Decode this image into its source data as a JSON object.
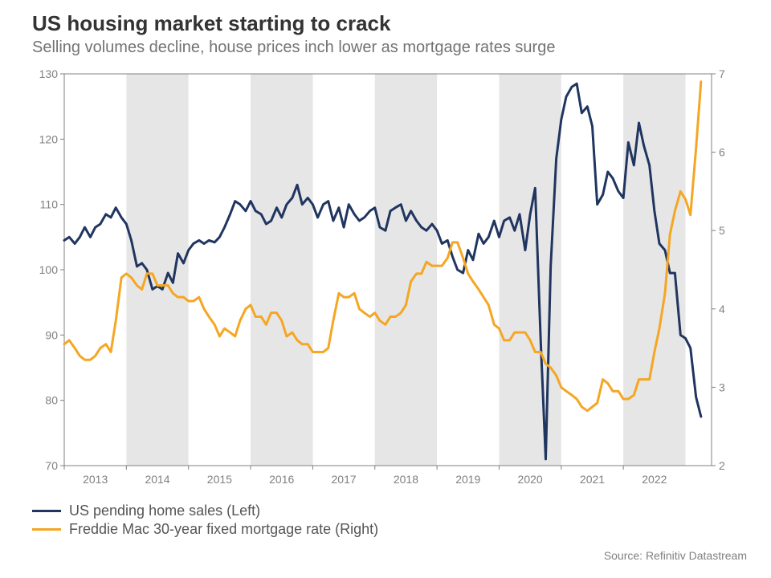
{
  "title": "US housing market starting to crack",
  "subtitle": "Selling volumes decline, house prices inch lower as mortgage rates surge",
  "source": "Source: Refinitiv Datastream",
  "chart": {
    "type": "line-dual-axis",
    "background_color": "#ffffff",
    "shaded_band_color": "#e6e6e6",
    "axis_line_color": "#808080",
    "tick_label_color": "#808080",
    "tick_label_fontsize": 14,
    "title_fontsize": 26,
    "title_color": "#333333",
    "subtitle_fontsize": 20,
    "subtitle_color": "#737373",
    "line_width": 3,
    "x": {
      "domain_start": 2012.5,
      "domain_end": 2022.92,
      "tick_years": [
        2013,
        2014,
        2015,
        2016,
        2017,
        2018,
        2019,
        2020,
        2021,
        2022
      ],
      "shaded_bands": [
        [
          2013.5,
          2014.5
        ],
        [
          2015.5,
          2016.5
        ],
        [
          2017.5,
          2018.5
        ],
        [
          2019.5,
          2020.5
        ],
        [
          2021.5,
          2022.5
        ]
      ]
    },
    "left_axis": {
      "min": 70,
      "max": 130,
      "tick_step": 10,
      "ticks": [
        70,
        80,
        90,
        100,
        110,
        120,
        130
      ]
    },
    "right_axis": {
      "min": 2,
      "max": 7,
      "tick_step": 1,
      "ticks": [
        2,
        3,
        4,
        5,
        6,
        7
      ]
    },
    "series": [
      {
        "name": "US pending home sales (Left)",
        "axis": "left",
        "color": "#20355f",
        "values": [
          [
            2012.5,
            104.5
          ],
          [
            2012.58,
            105.0
          ],
          [
            2012.67,
            104.0
          ],
          [
            2012.75,
            105.0
          ],
          [
            2012.83,
            106.5
          ],
          [
            2012.92,
            105.0
          ],
          [
            2013.0,
            106.5
          ],
          [
            2013.08,
            107.0
          ],
          [
            2013.17,
            108.5
          ],
          [
            2013.25,
            108.0
          ],
          [
            2013.33,
            109.5
          ],
          [
            2013.42,
            108.0
          ],
          [
            2013.5,
            107.0
          ],
          [
            2013.58,
            104.5
          ],
          [
            2013.67,
            100.5
          ],
          [
            2013.75,
            101.0
          ],
          [
            2013.83,
            100.0
          ],
          [
            2013.92,
            97.0
          ],
          [
            2014.0,
            97.5
          ],
          [
            2014.08,
            97.0
          ],
          [
            2014.17,
            99.5
          ],
          [
            2014.25,
            98.0
          ],
          [
            2014.33,
            102.5
          ],
          [
            2014.42,
            101.0
          ],
          [
            2014.5,
            103.0
          ],
          [
            2014.58,
            104.0
          ],
          [
            2014.67,
            104.5
          ],
          [
            2014.75,
            104.0
          ],
          [
            2014.83,
            104.5
          ],
          [
            2014.92,
            104.2
          ],
          [
            2015.0,
            105.0
          ],
          [
            2015.08,
            106.5
          ],
          [
            2015.17,
            108.5
          ],
          [
            2015.25,
            110.5
          ],
          [
            2015.33,
            110.0
          ],
          [
            2015.42,
            109.0
          ],
          [
            2015.5,
            110.5
          ],
          [
            2015.58,
            109.0
          ],
          [
            2015.67,
            108.5
          ],
          [
            2015.75,
            107.0
          ],
          [
            2015.83,
            107.5
          ],
          [
            2015.92,
            109.5
          ],
          [
            2016.0,
            108.0
          ],
          [
            2016.08,
            110.0
          ],
          [
            2016.17,
            111.0
          ],
          [
            2016.25,
            113.0
          ],
          [
            2016.33,
            110.0
          ],
          [
            2016.42,
            111.0
          ],
          [
            2016.5,
            110.0
          ],
          [
            2016.58,
            108.0
          ],
          [
            2016.67,
            110.0
          ],
          [
            2016.75,
            110.5
          ],
          [
            2016.83,
            107.5
          ],
          [
            2016.92,
            109.5
          ],
          [
            2017.0,
            106.5
          ],
          [
            2017.08,
            110.0
          ],
          [
            2017.17,
            108.5
          ],
          [
            2017.25,
            107.5
          ],
          [
            2017.33,
            108.0
          ],
          [
            2017.42,
            109.0
          ],
          [
            2017.5,
            109.5
          ],
          [
            2017.58,
            106.5
          ],
          [
            2017.67,
            106.0
          ],
          [
            2017.75,
            109.0
          ],
          [
            2017.83,
            109.5
          ],
          [
            2017.92,
            110.0
          ],
          [
            2018.0,
            107.5
          ],
          [
            2018.08,
            109.0
          ],
          [
            2018.17,
            107.5
          ],
          [
            2018.25,
            106.5
          ],
          [
            2018.33,
            106.0
          ],
          [
            2018.42,
            107.0
          ],
          [
            2018.5,
            106.0
          ],
          [
            2018.58,
            104.0
          ],
          [
            2018.67,
            104.5
          ],
          [
            2018.75,
            102.0
          ],
          [
            2018.83,
            100.0
          ],
          [
            2018.92,
            99.5
          ],
          [
            2019.0,
            103.0
          ],
          [
            2019.08,
            101.5
          ],
          [
            2019.17,
            105.5
          ],
          [
            2019.25,
            104.0
          ],
          [
            2019.33,
            105.0
          ],
          [
            2019.42,
            107.5
          ],
          [
            2019.5,
            105.0
          ],
          [
            2019.58,
            107.5
          ],
          [
            2019.67,
            108.0
          ],
          [
            2019.75,
            106.0
          ],
          [
            2019.83,
            108.5
          ],
          [
            2019.92,
            103.0
          ],
          [
            2020.0,
            108.5
          ],
          [
            2020.08,
            112.5
          ],
          [
            2020.17,
            89.0
          ],
          [
            2020.25,
            71.0
          ],
          [
            2020.33,
            100.5
          ],
          [
            2020.42,
            117.0
          ],
          [
            2020.5,
            123.0
          ],
          [
            2020.58,
            126.5
          ],
          [
            2020.67,
            128.0
          ],
          [
            2020.75,
            128.5
          ],
          [
            2020.83,
            124.0
          ],
          [
            2020.92,
            125.0
          ],
          [
            2021.0,
            122.0
          ],
          [
            2021.08,
            110.0
          ],
          [
            2021.17,
            111.5
          ],
          [
            2021.25,
            115.0
          ],
          [
            2021.33,
            114.0
          ],
          [
            2021.42,
            112.0
          ],
          [
            2021.5,
            111.0
          ],
          [
            2021.58,
            119.5
          ],
          [
            2021.67,
            116.0
          ],
          [
            2021.75,
            122.5
          ],
          [
            2021.83,
            119.0
          ],
          [
            2021.92,
            116.0
          ],
          [
            2022.0,
            109.0
          ],
          [
            2022.08,
            104.0
          ],
          [
            2022.17,
            103.0
          ],
          [
            2022.25,
            99.5
          ],
          [
            2022.33,
            99.5
          ],
          [
            2022.42,
            90.0
          ],
          [
            2022.5,
            89.5
          ],
          [
            2022.58,
            88.0
          ],
          [
            2022.67,
            80.5
          ],
          [
            2022.75,
            77.5
          ]
        ]
      },
      {
        "name": "Freddie Mac 30-year fixed mortgage rate (Right)",
        "axis": "right",
        "color": "#f5a623",
        "values": [
          [
            2012.5,
            3.55
          ],
          [
            2012.58,
            3.6
          ],
          [
            2012.67,
            3.5
          ],
          [
            2012.75,
            3.4
          ],
          [
            2012.83,
            3.35
          ],
          [
            2012.92,
            3.35
          ],
          [
            2013.0,
            3.4
          ],
          [
            2013.08,
            3.5
          ],
          [
            2013.17,
            3.55
          ],
          [
            2013.25,
            3.45
          ],
          [
            2013.33,
            3.85
          ],
          [
            2013.42,
            4.4
          ],
          [
            2013.5,
            4.45
          ],
          [
            2013.58,
            4.4
          ],
          [
            2013.67,
            4.3
          ],
          [
            2013.75,
            4.25
          ],
          [
            2013.83,
            4.45
          ],
          [
            2013.92,
            4.45
          ],
          [
            2014.0,
            4.3
          ],
          [
            2014.08,
            4.3
          ],
          [
            2014.17,
            4.3
          ],
          [
            2014.25,
            4.2
          ],
          [
            2014.33,
            4.15
          ],
          [
            2014.42,
            4.15
          ],
          [
            2014.5,
            4.1
          ],
          [
            2014.58,
            4.1
          ],
          [
            2014.67,
            4.15
          ],
          [
            2014.75,
            4.0
          ],
          [
            2014.83,
            3.9
          ],
          [
            2014.92,
            3.8
          ],
          [
            2015.0,
            3.65
          ],
          [
            2015.08,
            3.75
          ],
          [
            2015.17,
            3.7
          ],
          [
            2015.25,
            3.65
          ],
          [
            2015.33,
            3.85
          ],
          [
            2015.42,
            4.0
          ],
          [
            2015.5,
            4.05
          ],
          [
            2015.58,
            3.9
          ],
          [
            2015.67,
            3.9
          ],
          [
            2015.75,
            3.8
          ],
          [
            2015.83,
            3.95
          ],
          [
            2015.92,
            3.95
          ],
          [
            2016.0,
            3.85
          ],
          [
            2016.08,
            3.65
          ],
          [
            2016.17,
            3.7
          ],
          [
            2016.25,
            3.6
          ],
          [
            2016.33,
            3.55
          ],
          [
            2016.42,
            3.55
          ],
          [
            2016.5,
            3.45
          ],
          [
            2016.58,
            3.45
          ],
          [
            2016.67,
            3.45
          ],
          [
            2016.75,
            3.5
          ],
          [
            2016.83,
            3.85
          ],
          [
            2016.92,
            4.2
          ],
          [
            2017.0,
            4.15
          ],
          [
            2017.08,
            4.15
          ],
          [
            2017.17,
            4.2
          ],
          [
            2017.25,
            4.0
          ],
          [
            2017.33,
            3.95
          ],
          [
            2017.42,
            3.9
          ],
          [
            2017.5,
            3.95
          ],
          [
            2017.58,
            3.85
          ],
          [
            2017.67,
            3.8
          ],
          [
            2017.75,
            3.9
          ],
          [
            2017.83,
            3.9
          ],
          [
            2017.92,
            3.95
          ],
          [
            2018.0,
            4.05
          ],
          [
            2018.08,
            4.35
          ],
          [
            2018.17,
            4.45
          ],
          [
            2018.25,
            4.45
          ],
          [
            2018.33,
            4.6
          ],
          [
            2018.42,
            4.55
          ],
          [
            2018.5,
            4.55
          ],
          [
            2018.58,
            4.55
          ],
          [
            2018.67,
            4.65
          ],
          [
            2018.75,
            4.85
          ],
          [
            2018.83,
            4.85
          ],
          [
            2018.92,
            4.65
          ],
          [
            2019.0,
            4.45
          ],
          [
            2019.08,
            4.35
          ],
          [
            2019.17,
            4.25
          ],
          [
            2019.25,
            4.15
          ],
          [
            2019.33,
            4.05
          ],
          [
            2019.42,
            3.8
          ],
          [
            2019.5,
            3.75
          ],
          [
            2019.58,
            3.6
          ],
          [
            2019.67,
            3.6
          ],
          [
            2019.75,
            3.7
          ],
          [
            2019.83,
            3.7
          ],
          [
            2019.92,
            3.7
          ],
          [
            2020.0,
            3.6
          ],
          [
            2020.08,
            3.45
          ],
          [
            2020.17,
            3.45
          ],
          [
            2020.25,
            3.3
          ],
          [
            2020.33,
            3.25
          ],
          [
            2020.42,
            3.15
          ],
          [
            2020.5,
            3.0
          ],
          [
            2020.58,
            2.95
          ],
          [
            2020.67,
            2.9
          ],
          [
            2020.75,
            2.85
          ],
          [
            2020.83,
            2.75
          ],
          [
            2020.92,
            2.7
          ],
          [
            2021.0,
            2.75
          ],
          [
            2021.08,
            2.8
          ],
          [
            2021.17,
            3.1
          ],
          [
            2021.25,
            3.05
          ],
          [
            2021.33,
            2.95
          ],
          [
            2021.42,
            2.95
          ],
          [
            2021.5,
            2.85
          ],
          [
            2021.58,
            2.85
          ],
          [
            2021.67,
            2.9
          ],
          [
            2021.75,
            3.1
          ],
          [
            2021.83,
            3.1
          ],
          [
            2021.92,
            3.1
          ],
          [
            2022.0,
            3.45
          ],
          [
            2022.08,
            3.75
          ],
          [
            2022.17,
            4.2
          ],
          [
            2022.25,
            4.95
          ],
          [
            2022.33,
            5.25
          ],
          [
            2022.42,
            5.5
          ],
          [
            2022.5,
            5.4
          ],
          [
            2022.58,
            5.2
          ],
          [
            2022.67,
            6.05
          ],
          [
            2022.75,
            6.9
          ]
        ]
      }
    ]
  },
  "legend": {
    "items": [
      {
        "label": "US pending home sales (Left)",
        "color": "#20355f"
      },
      {
        "label": "Freddie Mac 30-year fixed mortgage rate (Right)",
        "color": "#f5a623"
      }
    ]
  }
}
